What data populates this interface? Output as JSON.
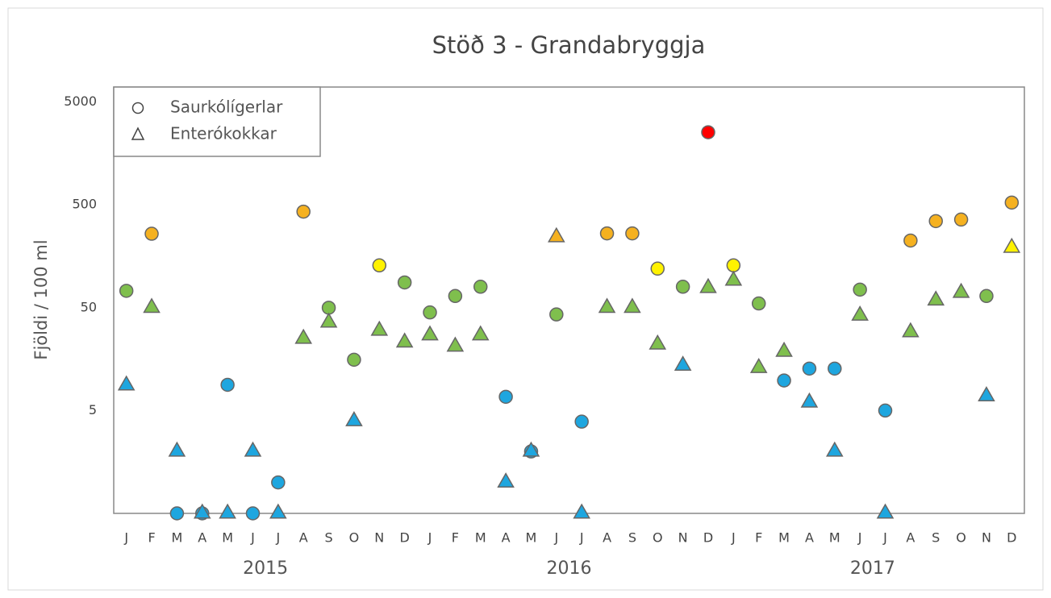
{
  "chart_data": {
    "type": "scatter",
    "title": "Stöð 3  -  Grandabryggja",
    "y_label": "Fjöldi / 100 ml",
    "log_scale": true,
    "grid": false,
    "legend": "upper left",
    "categories": [
      "J",
      "F",
      "M",
      "A",
      "M",
      "J",
      "J",
      "A",
      "S",
      "O",
      "N",
      "D",
      "J",
      "F",
      "M",
      "A",
      "M",
      "J",
      "J",
      "A",
      "S",
      "O",
      "N",
      "D",
      "J",
      "F",
      "M",
      "A",
      "M",
      "J",
      "J",
      "A",
      "S",
      "O",
      "N",
      "D"
    ],
    "groups": [
      "2015",
      "2016",
      "2017"
    ],
    "ylim": [
      0.5,
      7000
    ],
    "yticks": [
      5,
      50,
      500,
      5000
    ],
    "series": [
      {
        "name": "Saurkólígerlar",
        "marker": "circle",
        "values": [
          73,
          262,
          0.5,
          0.5,
          8.9,
          0.5,
          1,
          430,
          50,
          15.6,
          129,
          88,
          45,
          65,
          80,
          6.8,
          2,
          43,
          3.9,
          264,
          264,
          120,
          80,
          2545,
          129,
          55,
          9.8,
          12.8,
          12.8,
          75,
          5,
          225,
          348,
          360,
          65,
          527
        ],
        "colors": [
          "#7fbf4d",
          "#f5b120",
          "#1ea6df",
          "#1ea6df",
          "#1ea6df",
          "#1ea6df",
          "#1ea6df",
          "#f5b120",
          "#7fbf4d",
          "#7fbf4d",
          "#fff200",
          "#7fbf4d",
          "#7fbf4d",
          "#7fbf4d",
          "#7fbf4d",
          "#1ea6df",
          "#1ea6df",
          "#7fbf4d",
          "#1ea6df",
          "#f5b120",
          "#f5b120",
          "#fff200",
          "#7fbf4d",
          "#ff0000",
          "#fff200",
          "#7fbf4d",
          "#1ea6df",
          "#1ea6df",
          "#1ea6df",
          "#7fbf4d",
          "#1ea6df",
          "#f5b120",
          "#f5b120",
          "#f5b120",
          "#7fbf4d",
          "#f5b120"
        ]
      },
      {
        "name": "Enterókokkar",
        "marker": "triangle",
        "values": [
          8.8,
          50,
          2,
          0.5,
          0.5,
          2,
          0.5,
          25,
          36,
          3.95,
          30,
          23,
          27,
          21,
          27,
          1,
          2,
          243,
          0.5,
          50,
          50,
          22,
          13.7,
          78,
          92,
          13,
          18.7,
          6,
          2,
          42,
          0.5,
          29,
          59,
          70,
          6.9,
          192
        ],
        "colors": [
          "#1ea6df",
          "#7fbf4d",
          "#1ea6df",
          "#1ea6df",
          "#1ea6df",
          "#1ea6df",
          "#1ea6df",
          "#7fbf4d",
          "#7fbf4d",
          "#1ea6df",
          "#7fbf4d",
          "#7fbf4d",
          "#7fbf4d",
          "#7fbf4d",
          "#7fbf4d",
          "#1ea6df",
          "#1ea6df",
          "#f5b120",
          "#1ea6df",
          "#7fbf4d",
          "#7fbf4d",
          "#7fbf4d",
          "#1ea6df",
          "#7fbf4d",
          "#7fbf4d",
          "#7fbf4d",
          "#7fbf4d",
          "#1ea6df",
          "#1ea6df",
          "#7fbf4d",
          "#1ea6df",
          "#7fbf4d",
          "#7fbf4d",
          "#7fbf4d",
          "#1ea6df",
          "#fff200"
        ]
      }
    ]
  }
}
